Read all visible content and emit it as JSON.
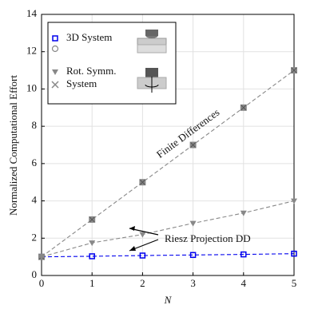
{
  "chart_data": {
    "type": "line",
    "x_label": "N",
    "y_label": "Normalized Computational Effort",
    "x": [
      0,
      1,
      2,
      3,
      4,
      5
    ],
    "series": [
      {
        "color": "#0000ee",
        "marker": "square",
        "values": [
          1,
          1.03,
          1.07,
          1.1,
          1.13,
          1.17
        ]
      },
      {
        "color": "#888888",
        "marker": "square-x",
        "values": [
          1,
          3,
          5,
          7,
          9,
          11
        ]
      },
      {
        "color": "#888888",
        "marker": "triangle",
        "values": [
          1,
          1.75,
          2.2,
          2.8,
          3.35,
          4.0
        ]
      }
    ],
    "legend": [
      {
        "label": "3D System",
        "marker": "square",
        "color": "#0000ee"
      },
      {
        "label": "Rot. Symm.",
        "marker": "triangle",
        "color": "#888888"
      },
      {
        "label": "System",
        "marker": "x",
        "color": "#888888"
      }
    ],
    "annotations": [
      "Finite Differences",
      "Riesz Projection DD"
    ],
    "xlim": [
      0,
      5
    ],
    "xticks": [
      0,
      1,
      2,
      3,
      4,
      5
    ],
    "ylim": [
      0,
      14
    ],
    "yticks": [
      0,
      2,
      4,
      6,
      8,
      10,
      12,
      14
    ],
    "grid": true
  }
}
